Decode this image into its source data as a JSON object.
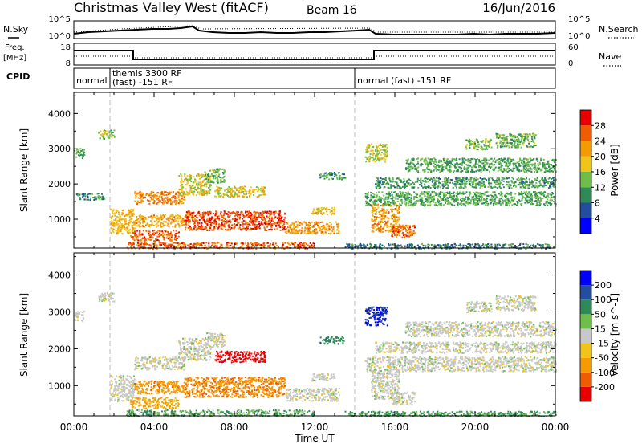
{
  "header": {
    "title": "Christmas Valley West (fitACF)",
    "beam": "Beam 16",
    "date": "16/Jun/2016"
  },
  "strips": {
    "nsky_label": "N.Sky",
    "nsky_ticks": [
      "10^5",
      "10^0"
    ],
    "nsearch_label": "N.Search",
    "nsearch_ticks": [
      "10^5",
      "10^0"
    ],
    "freq_label_1": "Freq.",
    "freq_label_2": "[MHz]",
    "freq_ticks": [
      "18",
      "8"
    ],
    "nave_label": "Nave",
    "nave_ticks": [
      "60",
      "0"
    ],
    "cpid_label": "CPID"
  },
  "cpid_segments": [
    {
      "start_hour": 0.0,
      "end_hour": 1.8,
      "line1": "normal",
      "line2": ""
    },
    {
      "start_hour": 1.8,
      "end_hour": 14.0,
      "line1": "themis 3300 RF",
      "line2": "(fast) -151 RF"
    },
    {
      "start_hour": 14.0,
      "end_hour": 24.0,
      "line1": "normal (fast) -151 RF",
      "line2": ""
    }
  ],
  "axes": {
    "xlabel": "Time UT",
    "x_ticks": [
      "00:00",
      "04:00",
      "08:00",
      "12:00",
      "16:00",
      "20:00",
      "00:00"
    ],
    "x_tick_hours": [
      0,
      4,
      8,
      12,
      16,
      20,
      24
    ],
    "ylabel": "Slant Range [km]",
    "y_ticks": [
      "1000",
      "2000",
      "3000",
      "4000"
    ],
    "y_tick_values": [
      1000,
      2000,
      3000,
      4000
    ]
  },
  "chart_data": [
    {
      "type": "heatmap",
      "name": "power",
      "x_range_hours": [
        0,
        24
      ],
      "ylim_km": [
        180,
        4600
      ],
      "colorbar_label": "Power [dB]",
      "colorbar_ticks": [
        "4",
        "8",
        "12",
        "16",
        "20",
        "24",
        "28"
      ],
      "colorbar_tick_values": [
        4,
        8,
        12,
        16,
        20,
        24,
        28
      ],
      "zlim": [
        0,
        32
      ],
      "colors": [
        "#0000ff",
        "#234ea0",
        "#2e8b57",
        "#6fbe4a",
        "#f0c419",
        "#f59b00",
        "#f25c00",
        "#e60000"
      ],
      "regions": [
        {
          "t0": 0.0,
          "t1": 0.5,
          "r0": 2750,
          "r1": 3050,
          "level": 12
        },
        {
          "t0": 1.2,
          "t1": 2.0,
          "r0": 3300,
          "r1": 3550,
          "level": 14
        },
        {
          "t0": 0.1,
          "t1": 1.5,
          "r0": 1550,
          "r1": 1750,
          "level": 10
        },
        {
          "t0": 1.8,
          "t1": 3.0,
          "r0": 600,
          "r1": 1300,
          "level": 20
        },
        {
          "t0": 2.8,
          "t1": 5.2,
          "r0": 400,
          "r1": 700,
          "level": 26
        },
        {
          "t0": 3.0,
          "t1": 5.5,
          "r0": 1450,
          "r1": 1800,
          "level": 24
        },
        {
          "t0": 5.2,
          "t1": 6.8,
          "r0": 1700,
          "r1": 2300,
          "level": 17
        },
        {
          "t0": 6.5,
          "t1": 7.5,
          "r0": 2050,
          "r1": 2450,
          "level": 13
        },
        {
          "t0": 3.0,
          "t1": 5.5,
          "r0": 800,
          "r1": 1150,
          "level": 21
        },
        {
          "t0": 5.5,
          "t1": 10.5,
          "r0": 700,
          "r1": 1250,
          "level": 27
        },
        {
          "t0": 7.0,
          "t1": 9.5,
          "r0": 1650,
          "r1": 1950,
          "level": 18
        },
        {
          "t0": 2.6,
          "t1": 12.0,
          "r0": 180,
          "r1": 360,
          "level": 26
        },
        {
          "t0": 10.5,
          "t1": 13.2,
          "r0": 600,
          "r1": 950,
          "level": 22
        },
        {
          "t0": 11.8,
          "t1": 13.0,
          "r0": 1150,
          "r1": 1350,
          "level": 18
        },
        {
          "t0": 12.2,
          "t1": 13.5,
          "r0": 2150,
          "r1": 2350,
          "level": 11
        },
        {
          "t0": 14.5,
          "t1": 15.6,
          "r0": 2650,
          "r1": 3150,
          "level": 16
        },
        {
          "t0": 14.8,
          "t1": 16.2,
          "r0": 650,
          "r1": 1450,
          "level": 22
        },
        {
          "t0": 15.8,
          "t1": 17.0,
          "r0": 500,
          "r1": 850,
          "level": 25
        },
        {
          "t0": 14.5,
          "t1": 24.0,
          "r0": 1400,
          "r1": 1800,
          "level": 12
        },
        {
          "t0": 15.0,
          "t1": 24.0,
          "r0": 1900,
          "r1": 2200,
          "level": 11
        },
        {
          "t0": 16.5,
          "t1": 24.0,
          "r0": 2350,
          "r1": 2750,
          "level": 12
        },
        {
          "t0": 19.5,
          "t1": 20.8,
          "r0": 3000,
          "r1": 3300,
          "level": 14
        },
        {
          "t0": 21.0,
          "t1": 23.0,
          "r0": 3050,
          "r1": 3450,
          "level": 13
        },
        {
          "t0": 13.5,
          "t1": 24.0,
          "r0": 180,
          "r1": 320,
          "level": 9
        }
      ]
    },
    {
      "type": "heatmap",
      "name": "velocity",
      "x_range_hours": [
        0,
        24
      ],
      "ylim_km": [
        180,
        4600
      ],
      "colorbar_label": "Velocity [m s^-1]",
      "colorbar_ticks": [
        "200",
        "100",
        "50",
        "15",
        "-15",
        "-50",
        "-100",
        "-200"
      ],
      "colorbar_tick_values": [
        200,
        100,
        50,
        15,
        -15,
        -50,
        -100,
        -200
      ],
      "zlim": [
        -250,
        250
      ],
      "colors": [
        "#e60000",
        "#f25c00",
        "#f59b00",
        "#f0c419",
        "#c8c8c8",
        "#6fbe4a",
        "#2e8b57",
        "#234ea0",
        "#0000ff"
      ],
      "regions": [
        {
          "t0": 0.0,
          "t1": 0.5,
          "r0": 2750,
          "r1": 3050,
          "value": 0
        },
        {
          "t0": 1.2,
          "t1": 2.0,
          "r0": 3300,
          "r1": 3550,
          "value": 0
        },
        {
          "t0": 1.8,
          "t1": 3.0,
          "r0": 600,
          "r1": 1300,
          "value": 0
        },
        {
          "t0": 2.8,
          "t1": 5.2,
          "r0": 400,
          "r1": 700,
          "value": -40
        },
        {
          "t0": 3.0,
          "t1": 5.5,
          "r0": 1450,
          "r1": 1800,
          "value": 0
        },
        {
          "t0": 5.2,
          "t1": 6.8,
          "r0": 1700,
          "r1": 2300,
          "value": 0
        },
        {
          "t0": 6.5,
          "t1": 7.5,
          "r0": 2050,
          "r1": 2450,
          "value": 0
        },
        {
          "t0": 3.0,
          "t1": 5.5,
          "r0": 800,
          "r1": 1150,
          "value": -60
        },
        {
          "t0": 5.5,
          "t1": 10.5,
          "r0": 700,
          "r1": 1250,
          "value": -70
        },
        {
          "t0": 7.0,
          "t1": 9.5,
          "r0": 1650,
          "r1": 1950,
          "value": -180
        },
        {
          "t0": 2.6,
          "t1": 12.0,
          "r0": 180,
          "r1": 360,
          "value": 30
        },
        {
          "t0": 10.5,
          "t1": 13.2,
          "r0": 600,
          "r1": 950,
          "value": 0
        },
        {
          "t0": 11.8,
          "t1": 13.0,
          "r0": 1150,
          "r1": 1350,
          "value": 0
        },
        {
          "t0": 12.2,
          "t1": 13.5,
          "r0": 2150,
          "r1": 2350,
          "value": 60
        },
        {
          "t0": 14.5,
          "t1": 15.6,
          "r0": 2650,
          "r1": 3150,
          "value": 150
        },
        {
          "t0": 14.8,
          "t1": 16.2,
          "r0": 650,
          "r1": 1450,
          "value": 0
        },
        {
          "t0": 15.8,
          "t1": 17.0,
          "r0": 500,
          "r1": 850,
          "value": 0
        },
        {
          "t0": 14.5,
          "t1": 24.0,
          "r0": 1400,
          "r1": 1800,
          "value": 0
        },
        {
          "t0": 15.0,
          "t1": 24.0,
          "r0": 1900,
          "r1": 2200,
          "value": 0
        },
        {
          "t0": 16.5,
          "t1": 24.0,
          "r0": 2350,
          "r1": 2750,
          "value": 0
        },
        {
          "t0": 19.5,
          "t1": 20.8,
          "r0": 3000,
          "r1": 3300,
          "value": 0
        },
        {
          "t0": 21.0,
          "t1": 23.0,
          "r0": 3050,
          "r1": 3450,
          "value": 0
        },
        {
          "t0": 13.5,
          "t1": 24.0,
          "r0": 180,
          "r1": 320,
          "value": 40
        }
      ]
    }
  ]
}
